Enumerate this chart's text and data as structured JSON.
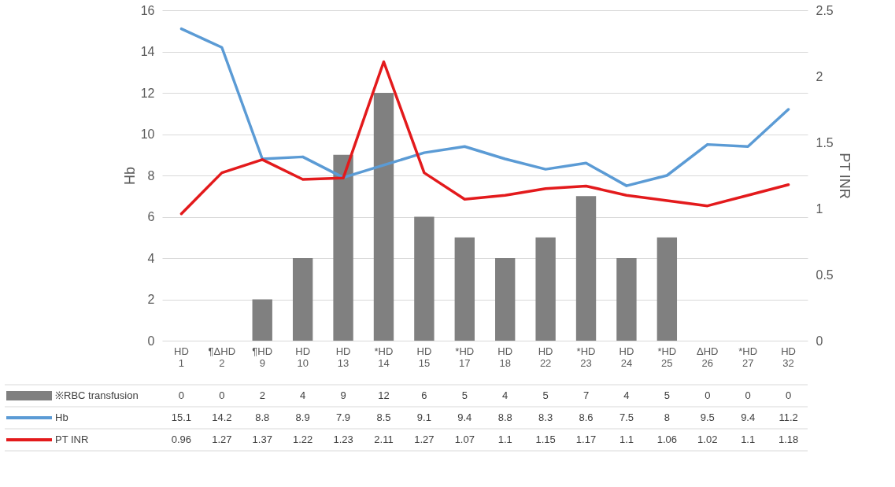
{
  "chart_data": {
    "type": "bar",
    "ylabel": "Hb",
    "y2label": "PT INR",
    "categories": [
      "HD 1",
      "¶ΔHD 2",
      "¶HD 9",
      "HD 10",
      "HD 13",
      "*HD 14",
      "HD 15",
      "*HD 17",
      "HD 18",
      "HD 22",
      "*HD 23",
      "HD 24",
      "*HD 25",
      "ΔHD 26",
      "*HD 27",
      "HD 32"
    ],
    "series": [
      {
        "name": "※RBC transfusion",
        "color": "#808080",
        "values": [
          0,
          0,
          2,
          4,
          9,
          12,
          6,
          5,
          4,
          5,
          7,
          4,
          5,
          0,
          0,
          0
        ]
      },
      {
        "name": "Hb",
        "type": "line",
        "color": "#5b9bd5",
        "values": [
          15.1,
          14.2,
          8.8,
          8.9,
          7.9,
          8.5,
          9.1,
          9.4,
          8.8,
          8.3,
          8.6,
          7.5,
          8,
          9.5,
          9.4,
          11.2
        ]
      },
      {
        "name": "PT INR",
        "type": "line",
        "axis": "y2",
        "color": "#e31a1c",
        "values": [
          0.96,
          1.27,
          1.37,
          1.22,
          1.23,
          2.11,
          1.27,
          1.07,
          1.1,
          1.15,
          1.17,
          1.1,
          1.06,
          1.02,
          1.1,
          1.18
        ]
      }
    ],
    "ylim": [
      0,
      16
    ],
    "yticks": [
      0,
      2,
      4,
      6,
      8,
      10,
      12,
      14,
      16
    ],
    "y2lim": [
      0,
      2.5
    ],
    "y2ticks": [
      {
        "value": 0,
        "label": "0"
      },
      0.5,
      {
        "value": 1,
        "label": "1"
      },
      1.5,
      {
        "value": 2,
        "label": "2"
      },
      2.5
    ],
    "grid": "y",
    "legend": "bottom left",
    "data_labels": true
  }
}
